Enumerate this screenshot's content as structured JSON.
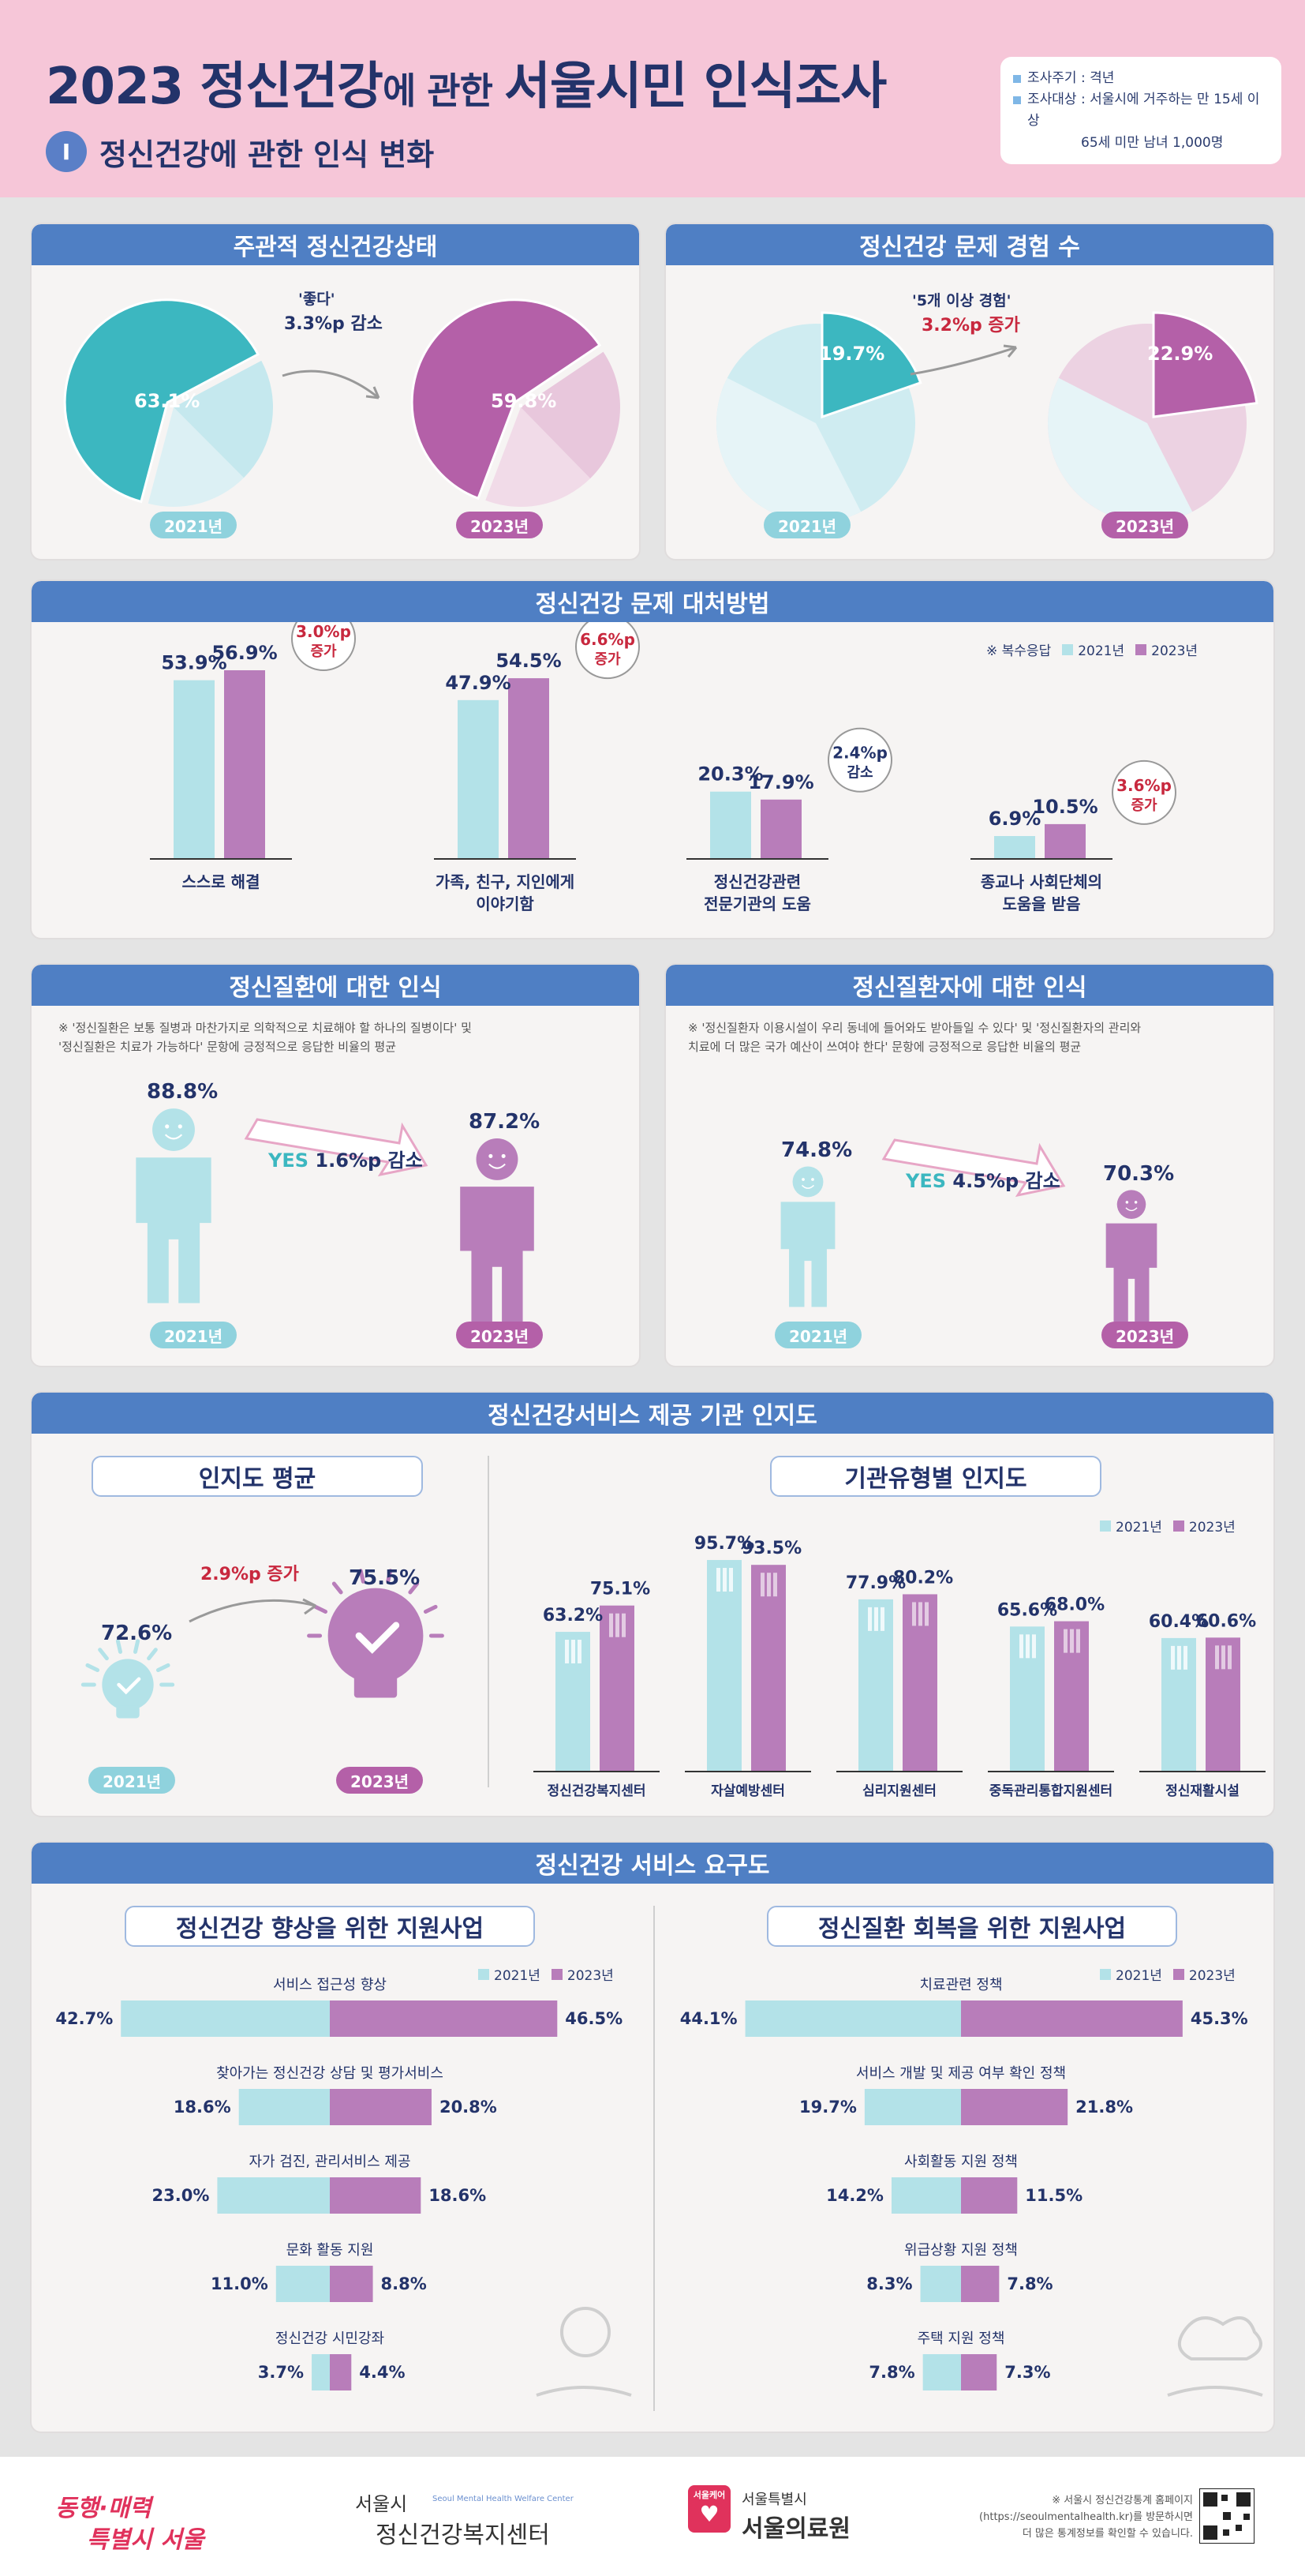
{
  "header": {
    "year": "2023",
    "title_a": "정신건강",
    "title_b": "에 관한 ",
    "title_c": "서울시민 인식조사",
    "section_no": "I",
    "section_title": "정신건강에 관한 인식 변화",
    "info_cycle_label": "조사주기 : 격년",
    "info_target_label": "조사대상 : 서울시에 거주하는 만 15세 이상",
    "info_target_line2": "65세 미만 남녀 1,000명"
  },
  "colors": {
    "y2021": "#b3e2e8",
    "y2023": "#b87dba",
    "accent_blue": "#4f7fc4",
    "teal": "#3cb7c0",
    "purple": "#b460a8",
    "red": "#c8283e"
  },
  "years": {
    "a": "2021년",
    "b": "2023년"
  },
  "legend": {
    "a": "2021년",
    "b": "2023년",
    "multi": "※ 복수응답"
  },
  "subjective": {
    "title": "주관적 정신건강상태",
    "change_label": "'좋다'",
    "change_value": "3.3%p 감소",
    "pie2021": "63.1%",
    "pie2023": "59.8%"
  },
  "experience": {
    "title": "정신건강 문제 경험 수",
    "change_label": "'5개 이상 경험'",
    "change_value": "3.2%p 증가",
    "pie2021": "19.7%",
    "pie2023": "22.9%"
  },
  "coping": {
    "title": "정신건강 문제 대처방법",
    "groups": [
      {
        "label1": "스스로 해결",
        "label2": "",
        "v2021": "53.9%",
        "v2023": "56.9%",
        "bubble1": "3.0%p",
        "bubble2": "증가"
      },
      {
        "label1": "가족, 친구, 지인에게",
        "label2": "이야기함",
        "v2021": "47.9%",
        "v2023": "54.5%",
        "bubble1": "6.6%p",
        "bubble2": "증가"
      },
      {
        "label1": "정신건강관련",
        "label2": "전문기관의 도움",
        "v2021": "20.3%",
        "v2023": "17.9%",
        "bubble1": "2.4%p",
        "bubble2": "감소"
      },
      {
        "label1": "종교나 사회단체의",
        "label2": "도움을 받음",
        "v2021": "6.9%",
        "v2023": "10.5%",
        "bubble1": "3.6%p",
        "bubble2": "증가"
      }
    ]
  },
  "illness": {
    "title": "정신질환에 대한 인식",
    "note1": "※ '정신질환은 보통 질병과 마찬가지로 의학적으로 치료해야 할 하나의 질병이다' 및",
    "note2": "'정신질환은 치료가 가능하다' 문항에 긍정적으로 응답한 비율의 평균",
    "v2021": "88.8%",
    "v2023": "87.2%",
    "arrow_yes": "YES",
    "arrow_txt": "1.6%p 감소"
  },
  "patient": {
    "title": "정신질환자에 대한 인식",
    "note1": "※ '정신질환자 이용시설이 우리 동네에 들어와도 받아들일 수 있다' 및 '정신질환자의 관리와",
    "note2": "치료에 더 많은 국가 예산이 쓰여야 한다' 문항에 긍정적으로 응답한 비율의 평균",
    "v2021": "74.8%",
    "v2023": "70.3%",
    "arrow_yes": "YES",
    "arrow_txt": "4.5%p 감소"
  },
  "awareness": {
    "title": "정신건강서비스 제공 기관 인지도",
    "avg_title": "인지도 평균",
    "avg2021": "72.6%",
    "avg2023": "75.5%",
    "avg_change": "2.9%p 증가",
    "type_title": "기관유형별 인지도"
  },
  "needs": {
    "title": "정신건강 서비스 요구도",
    "left_title": "정신건강 향상을 위한 지원사업",
    "right_title": "정신질환 회복을 위한 지원사업"
  },
  "chart_data": [
    {
      "type": "pie",
      "title": "주관적 정신건강상태 - 좋다",
      "categories": [
        "2021년",
        "2023년"
      ],
      "values": [
        63.1,
        59.8
      ],
      "unit": "%"
    },
    {
      "type": "pie",
      "title": "정신건강 문제 경험 수 - 5개 이상 경험",
      "categories": [
        "2021년",
        "2023년"
      ],
      "values": [
        19.7,
        22.9
      ],
      "unit": "%"
    },
    {
      "type": "bar",
      "title": "정신건강 문제 대처방법",
      "categories": [
        "스스로 해결",
        "가족, 친구, 지인에게 이야기함",
        "정신건강관련 전문기관의 도움",
        "종교나 사회단체의 도움을 받음"
      ],
      "series": [
        {
          "name": "2021년",
          "values": [
            53.9,
            47.9,
            20.3,
            6.9
          ]
        },
        {
          "name": "2023년",
          "values": [
            56.9,
            54.5,
            17.9,
            10.5
          ]
        }
      ],
      "ylim": [
        0,
        60
      ]
    },
    {
      "type": "bar",
      "title": "정신질환에 대한 인식",
      "categories": [
        "2021년",
        "2023년"
      ],
      "values": [
        88.8,
        87.2
      ]
    },
    {
      "type": "bar",
      "title": "정신질환자에 대한 인식",
      "categories": [
        "2021년",
        "2023년"
      ],
      "values": [
        74.8,
        70.3
      ]
    },
    {
      "type": "bar",
      "title": "인지도 평균",
      "categories": [
        "2021년",
        "2023년"
      ],
      "values": [
        72.6,
        75.5
      ]
    },
    {
      "type": "bar",
      "title": "기관유형별 인지도",
      "categories": [
        "정신건강복지센터",
        "자살예방센터",
        "심리지원센터",
        "중독관리통합지원센터",
        "정신재활시설"
      ],
      "series": [
        {
          "name": "2021년",
          "values": [
            63.2,
            95.7,
            77.9,
            65.6,
            60.4
          ]
        },
        {
          "name": "2023년",
          "values": [
            75.1,
            93.5,
            80.2,
            68.0,
            60.6
          ]
        }
      ],
      "ylim": [
        0,
        100
      ]
    },
    {
      "type": "bar",
      "title": "정신건강 향상을 위한 지원사업",
      "categories": [
        "서비스 접근성 향상",
        "찾아가는 정신건강 상담 및 평가서비스",
        "자가 검진, 관리서비스 제공",
        "문화 활동 지원",
        "정신건강 시민강좌"
      ],
      "series": [
        {
          "name": "2021년",
          "values": [
            42.7,
            18.6,
            23.0,
            11.0,
            3.7
          ]
        },
        {
          "name": "2023년",
          "values": [
            46.5,
            20.8,
            18.6,
            8.8,
            4.4
          ]
        }
      ]
    },
    {
      "type": "bar",
      "title": "정신질환 회복을 위한 지원사업",
      "categories": [
        "치료관련 정책",
        "서비스 개발 및 제공 여부 확인 정책",
        "사회활동 지원 정책",
        "위급상황 지원 정책",
        "주택 지원 정책"
      ],
      "series": [
        {
          "name": "2021년",
          "values": [
            44.1,
            19.7,
            14.2,
            8.3,
            7.8
          ]
        },
        {
          "name": "2023년",
          "values": [
            45.3,
            21.8,
            11.5,
            7.8,
            7.3
          ]
        }
      ]
    }
  ],
  "footer": {
    "slogan1": "동행·매력",
    "slogan2": "특별시 서울",
    "center_small": "서울시",
    "center_eng": "Seoul Mental Health Welfare Center",
    "center_name": "정신건강복지센터",
    "hosp_badge": "서울케어",
    "hosp_small": "서울특별시",
    "hosp_name": "서울의료원",
    "source1": "※ 서울시 정신건강통계 홈페이지",
    "source2": "(https://seoulmentalhealth.kr)를 방문하시면",
    "source3": "더 많은 통계정보를 확인할 수 있습니다."
  }
}
